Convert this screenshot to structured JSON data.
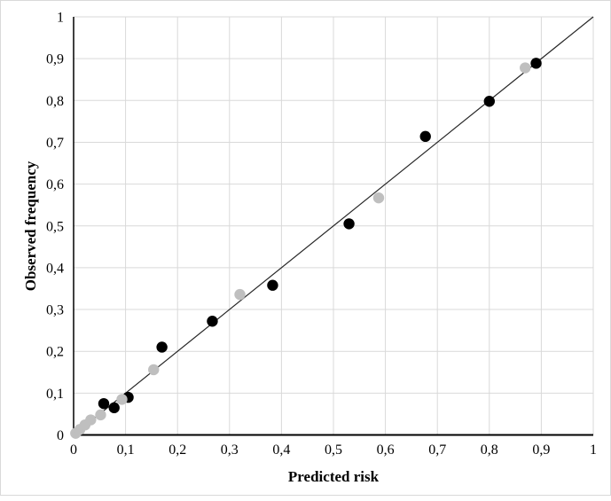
{
  "chart_data": {
    "type": "scatter",
    "title": "",
    "xlabel": "Predicted risk",
    "ylabel": "Observed frequency",
    "xlim": [
      0,
      1
    ],
    "ylim": [
      0,
      1
    ],
    "grid": true,
    "legend": "none",
    "x_ticks": [
      {
        "v": 0.0,
        "label": "0"
      },
      {
        "v": 0.1,
        "label": "0,1"
      },
      {
        "v": 0.2,
        "label": "0,2"
      },
      {
        "v": 0.3,
        "label": "0,3"
      },
      {
        "v": 0.4,
        "label": "0,4"
      },
      {
        "v": 0.5,
        "label": "0,5"
      },
      {
        "v": 0.6,
        "label": "0,6"
      },
      {
        "v": 0.7,
        "label": "0,7"
      },
      {
        "v": 0.8,
        "label": "0,8"
      },
      {
        "v": 0.9,
        "label": "0,9"
      },
      {
        "v": 1.0,
        "label": "1"
      }
    ],
    "y_ticks": [
      {
        "v": 0.0,
        "label": "0"
      },
      {
        "v": 0.1,
        "label": "0,1"
      },
      {
        "v": 0.2,
        "label": "0,2"
      },
      {
        "v": 0.3,
        "label": "0,3"
      },
      {
        "v": 0.4,
        "label": "0,4"
      },
      {
        "v": 0.5,
        "label": "0,5"
      },
      {
        "v": 0.6,
        "label": "0,6"
      },
      {
        "v": 0.7,
        "label": "0,7"
      },
      {
        "v": 0.8,
        "label": "0,8"
      },
      {
        "v": 0.9,
        "label": "0,9"
      },
      {
        "v": 1.0,
        "label": "1"
      }
    ],
    "identity_line": {
      "x1": 0,
      "y1": 0,
      "x2": 1,
      "y2": 1,
      "color": "#262626"
    },
    "series": [
      {
        "name": "black-dots",
        "color": "#000000",
        "marker": "circle",
        "points": [
          [
            0.058,
            0.075
          ],
          [
            0.078,
            0.065
          ],
          [
            0.105,
            0.09
          ],
          [
            0.17,
            0.21
          ],
          [
            0.267,
            0.272
          ],
          [
            0.383,
            0.358
          ],
          [
            0.53,
            0.505
          ],
          [
            0.677,
            0.714
          ],
          [
            0.8,
            0.798
          ],
          [
            0.89,
            0.889
          ]
        ]
      },
      {
        "name": "gray-dots",
        "color": "#bfbfbf",
        "marker": "circle",
        "points": [
          [
            0.004,
            0.004
          ],
          [
            0.012,
            0.013
          ],
          [
            0.022,
            0.024
          ],
          [
            0.033,
            0.036
          ],
          [
            0.052,
            0.048
          ],
          [
            0.093,
            0.085
          ],
          [
            0.154,
            0.156
          ],
          [
            0.32,
            0.336
          ],
          [
            0.587,
            0.567
          ],
          [
            0.869,
            0.878
          ]
        ]
      }
    ],
    "colors": {
      "grid": "#d9d9d9",
      "axis": "#000000",
      "tick_text": "#000000",
      "background": "#ffffff",
      "figure_border": "#d9d9d9"
    }
  }
}
